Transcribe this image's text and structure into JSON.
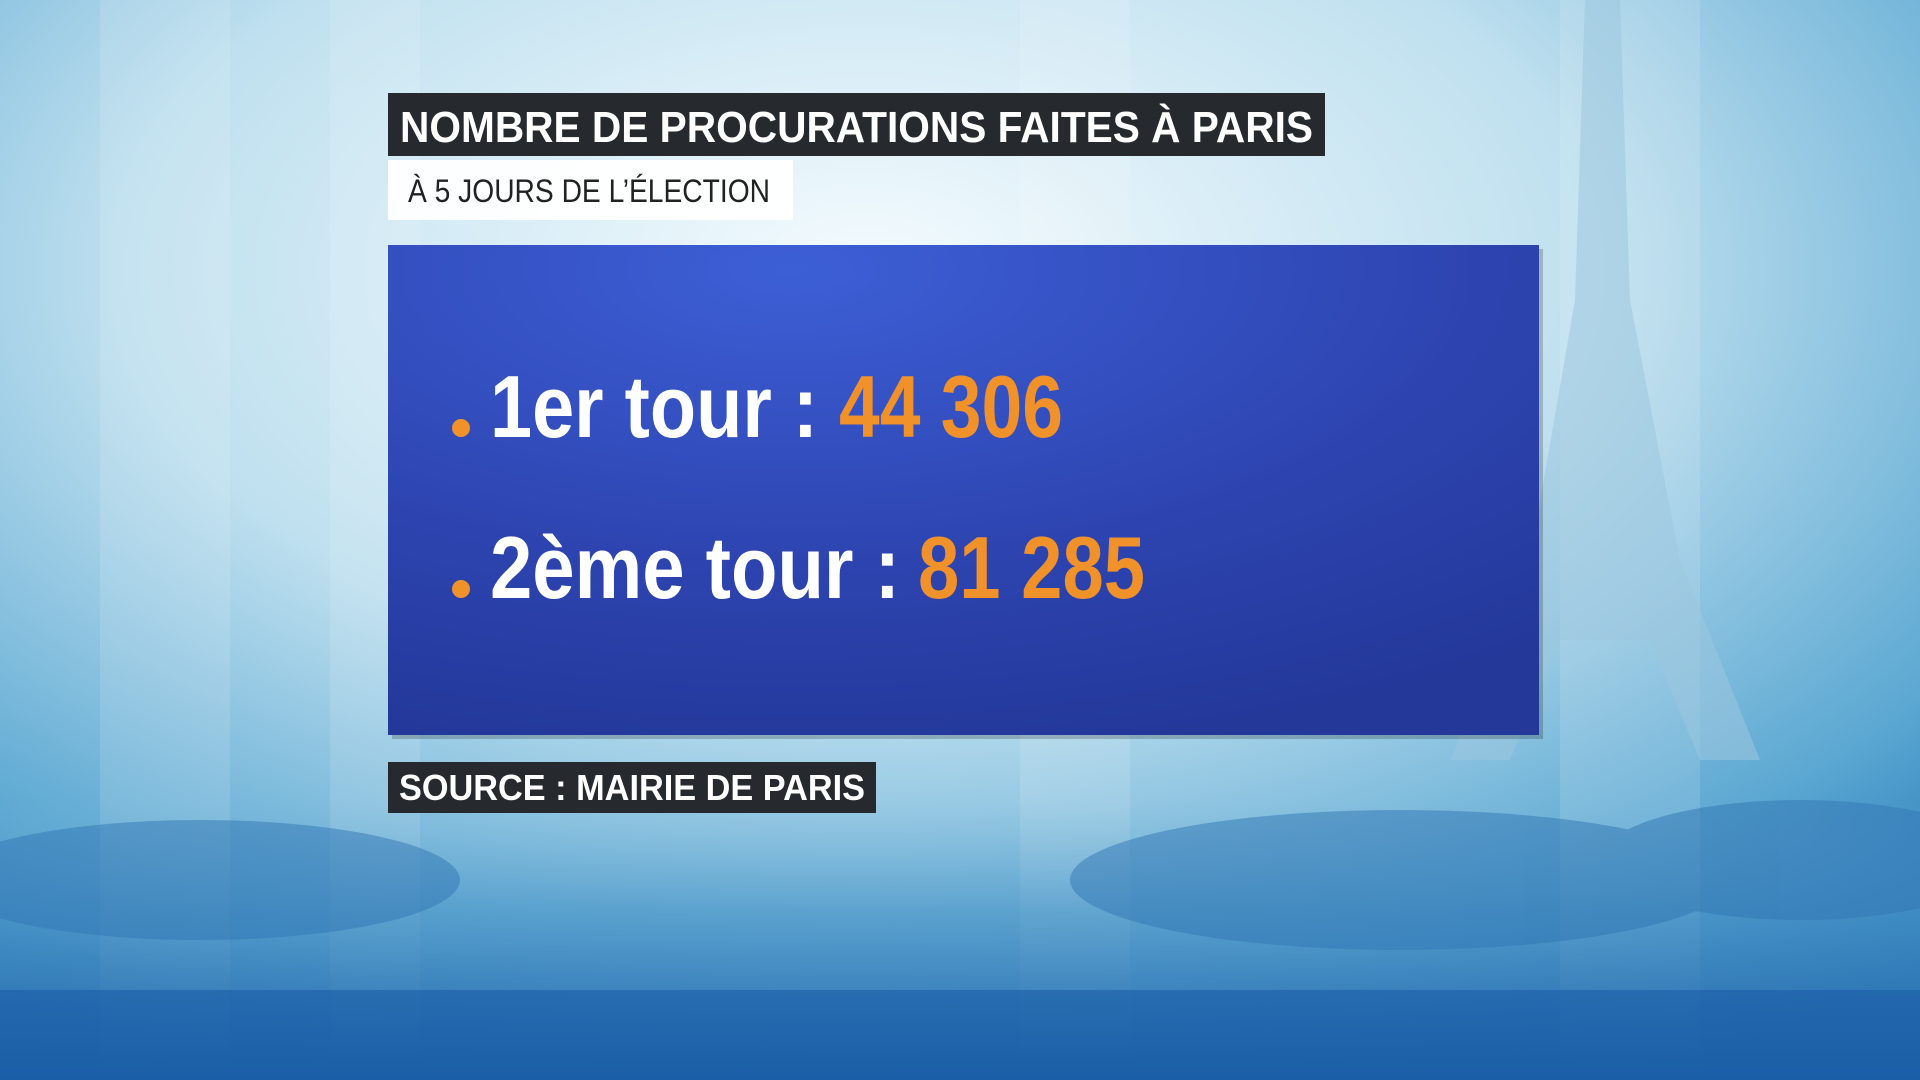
{
  "header": {
    "title": "NOMBRE DE PROCURATIONS FAITES À PARIS",
    "subtitle": "À 5 JOURS DE L’ÉLECTION"
  },
  "items": [
    {
      "label": "1er tour :",
      "value": "44 306"
    },
    {
      "label": "2ème tour :",
      "value": "81 285"
    }
  ],
  "source": "SOURCE : MAIRIE DE PARIS"
}
